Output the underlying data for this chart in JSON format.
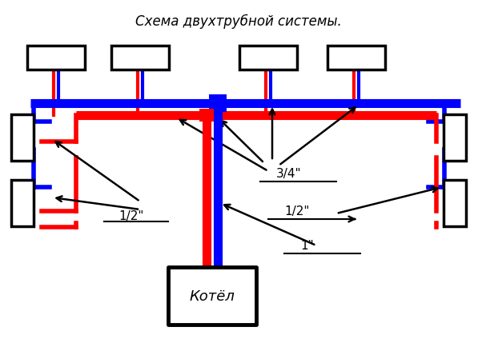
{
  "title": "Схема двухтрубной системы.",
  "title_fontsize": 12,
  "title_style": "italic",
  "bg_color": "#ffffff",
  "red": "#ff0000",
  "blue": "#0000ff",
  "black": "#000000",
  "boiler_label": "Котёл",
  "label_12_left": "1/2\"",
  "label_12_right": "1/2\"",
  "label_34": "3/4\"",
  "label_1": "1\""
}
